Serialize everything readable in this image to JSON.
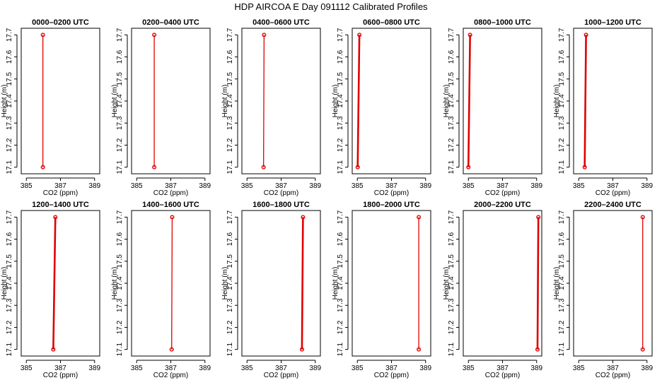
{
  "title": "HDP AIRCOA E  Day 091112  Calibrated Profiles",
  "colors": {
    "profile": "#e00000",
    "axis": "#000000"
  },
  "chart_data": {
    "type": "line",
    "xlabel": "CO2 (ppm)",
    "ylabel": "Height (m)",
    "xlim": [
      384.7,
      389.3
    ],
    "ylim": [
      17.07,
      17.73
    ],
    "x_ticks": [
      "385",
      "387",
      "389"
    ],
    "x_tick_values": [
      385,
      387,
      389
    ],
    "y_ticks": [
      "17.1",
      "17.2",
      "17.3",
      "17.4",
      "17.5",
      "17.6",
      "17.7"
    ],
    "y_tick_values": [
      17.1,
      17.2,
      17.3,
      17.4,
      17.5,
      17.6,
      17.7
    ],
    "panels": [
      {
        "title": "0000–0200 UTC",
        "points": [
          {
            "x": 385.97,
            "y": 17.1
          },
          {
            "x": 385.97,
            "y": 17.7
          }
        ]
      },
      {
        "title": "0200–0400 UTC",
        "points": [
          {
            "x": 386.03,
            "y": 17.1
          },
          {
            "x": 386.03,
            "y": 17.7
          }
        ]
      },
      {
        "title": "0400–0600 UTC",
        "points": [
          {
            "x": 385.97,
            "y": 17.1
          },
          {
            "x": 386.0,
            "y": 17.7
          }
        ]
      },
      {
        "title": "0600–0800 UTC",
        "points": [
          {
            "x": 385.02,
            "y": 17.1
          },
          {
            "x": 385.12,
            "y": 17.7
          }
        ]
      },
      {
        "title": "0800–1000 UTC",
        "points": [
          {
            "x": 385.0,
            "y": 17.1
          },
          {
            "x": 385.1,
            "y": 17.7
          }
        ]
      },
      {
        "title": "1000–1200 UTC",
        "points": [
          {
            "x": 385.35,
            "y": 17.1
          },
          {
            "x": 385.43,
            "y": 17.7
          }
        ]
      },
      {
        "title": "1200–1400 UTC",
        "points": [
          {
            "x": 386.58,
            "y": 17.1
          },
          {
            "x": 386.7,
            "y": 17.7
          }
        ]
      },
      {
        "title": "1400–1600 UTC",
        "points": [
          {
            "x": 387.05,
            "y": 17.1
          },
          {
            "x": 387.08,
            "y": 17.7
          }
        ]
      },
      {
        "title": "1600–1800 UTC",
        "points": [
          {
            "x": 388.22,
            "y": 17.1
          },
          {
            "x": 388.28,
            "y": 17.7
          }
        ]
      },
      {
        "title": "1800–2000 UTC",
        "points": [
          {
            "x": 388.6,
            "y": 17.1
          },
          {
            "x": 388.6,
            "y": 17.7
          }
        ]
      },
      {
        "title": "2000–2200 UTC",
        "points": [
          {
            "x": 389.05,
            "y": 17.1
          },
          {
            "x": 389.1,
            "y": 17.7
          }
        ]
      },
      {
        "title": "2200–2400 UTC",
        "points": [
          {
            "x": 388.75,
            "y": 17.1
          },
          {
            "x": 388.75,
            "y": 17.7
          }
        ]
      }
    ]
  }
}
